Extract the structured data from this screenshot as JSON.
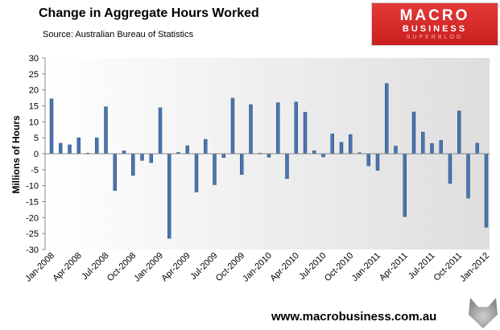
{
  "header": {
    "title": "Change in Aggregate Hours Worked",
    "source": "Source: Australian Bureau of Statistics"
  },
  "logo": {
    "line1": "MACRO",
    "line2": "BUSINESS",
    "line3": "SUPERBLOG"
  },
  "footer": {
    "website": "www.macrobusiness.com.au",
    "mascot_icon": "wolf-icon"
  },
  "colors": {
    "bar": "#4a74ad",
    "bar_edge": "#2b4f80",
    "plot_bg_start": "#ffffff",
    "plot_bg_end": "#dedede"
  },
  "chart_data": {
    "type": "bar",
    "title": "Change in Aggregate Hours Worked",
    "ylabel": "Millions of Hours",
    "xlabel": "",
    "ylim": [
      -30,
      30
    ],
    "yticks": [
      -30,
      -25,
      -20,
      -15,
      -10,
      -5,
      0,
      5,
      10,
      15,
      20,
      25,
      30
    ],
    "grid": false,
    "categories": [
      "Jan-2008",
      "Feb-2008",
      "Mar-2008",
      "Apr-2008",
      "May-2008",
      "Jun-2008",
      "Jul-2008",
      "Aug-2008",
      "Sep-2008",
      "Oct-2008",
      "Nov-2008",
      "Dec-2008",
      "Jan-2009",
      "Feb-2009",
      "Mar-2009",
      "Apr-2009",
      "May-2009",
      "Jun-2009",
      "Jul-2009",
      "Aug-2009",
      "Sep-2009",
      "Oct-2009",
      "Nov-2009",
      "Dec-2009",
      "Jan-2010",
      "Feb-2010",
      "Mar-2010",
      "Apr-2010",
      "May-2010",
      "Jun-2010",
      "Jul-2010",
      "Aug-2010",
      "Sep-2010",
      "Oct-2010",
      "Nov-2010",
      "Dec-2010",
      "Jan-2011",
      "Feb-2011",
      "Mar-2011",
      "Apr-2011",
      "May-2011",
      "Jun-2011",
      "Jul-2011",
      "Aug-2011",
      "Sep-2011",
      "Oct-2011",
      "Nov-2011",
      "Dec-2011",
      "Jan-2012"
    ],
    "tick_labels": [
      "Jan-2008",
      "Apr-2008",
      "Jul-2008",
      "Oct-2008",
      "Jan-2009",
      "Apr-2009",
      "Jul-2009",
      "Oct-2009",
      "Jan-2010",
      "Apr-2010",
      "Jul-2010",
      "Oct-2010",
      "Jan-2011",
      "Apr-2011",
      "Jul-2011",
      "Oct-2011",
      "Jan-2012"
    ],
    "series": [
      {
        "values": [
          17.2,
          3.3,
          2.8,
          5.0,
          0.2,
          5.0,
          14.7,
          -11.5,
          0.9,
          -6.8,
          -2.1,
          -2.8,
          14.4,
          -26.5,
          0.4,
          2.5,
          -12.0,
          4.5,
          -9.7,
          -1.2,
          17.4,
          -6.5,
          15.4,
          0.2,
          -1.1,
          16.0,
          -7.8,
          16.2,
          13.0,
          0.9,
          -1.0,
          6.2,
          3.6,
          6.0,
          0.3,
          -3.8,
          -5.2,
          22.0,
          2.4,
          -19.7,
          13.1,
          6.8,
          3.2,
          4.2,
          -9.3,
          13.4,
          -13.9,
          3.3,
          -23.0
        ]
      }
    ]
  }
}
